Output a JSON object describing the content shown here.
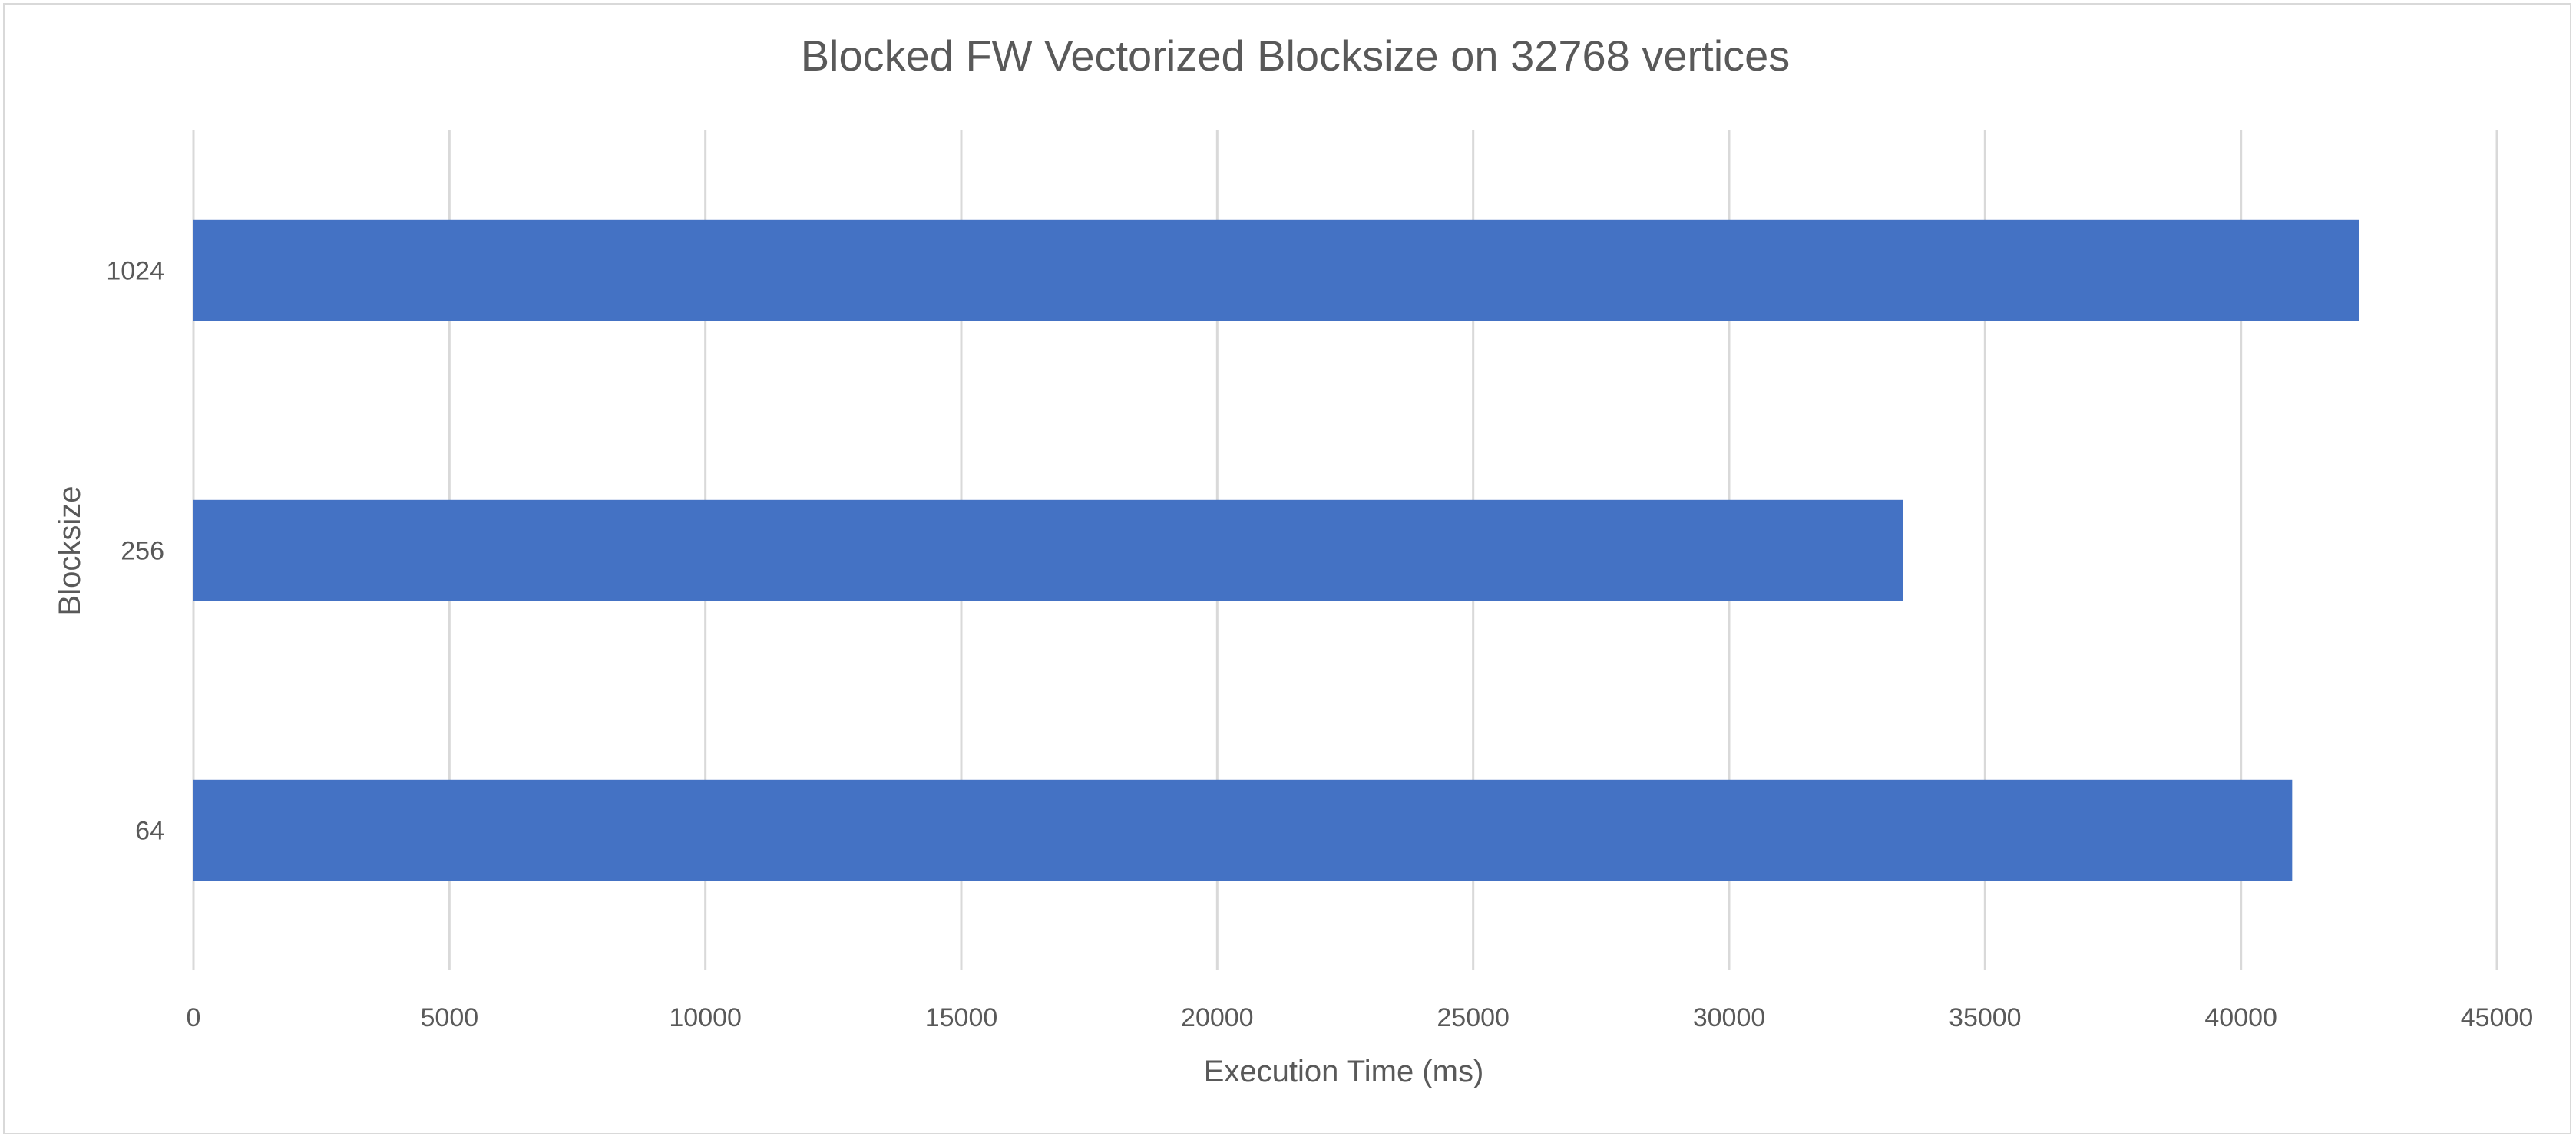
{
  "chart_data": {
    "type": "bar",
    "orientation": "horizontal",
    "title": "Blocked FW Vectorized Blocksize on 32768 vertices",
    "xlabel": "Execution Time (ms)",
    "ylabel": "Blocksize",
    "categories": [
      "1024",
      "256",
      "64"
    ],
    "series": [
      {
        "values": [
          42300,
          33400,
          41000
        ],
        "color": "#4472C4"
      }
    ],
    "xlim": [
      0,
      45000
    ],
    "xticks": [
      0,
      5000,
      10000,
      15000,
      20000,
      25000,
      30000,
      35000,
      40000,
      45000
    ],
    "grid": "vertical",
    "legend": "none"
  }
}
